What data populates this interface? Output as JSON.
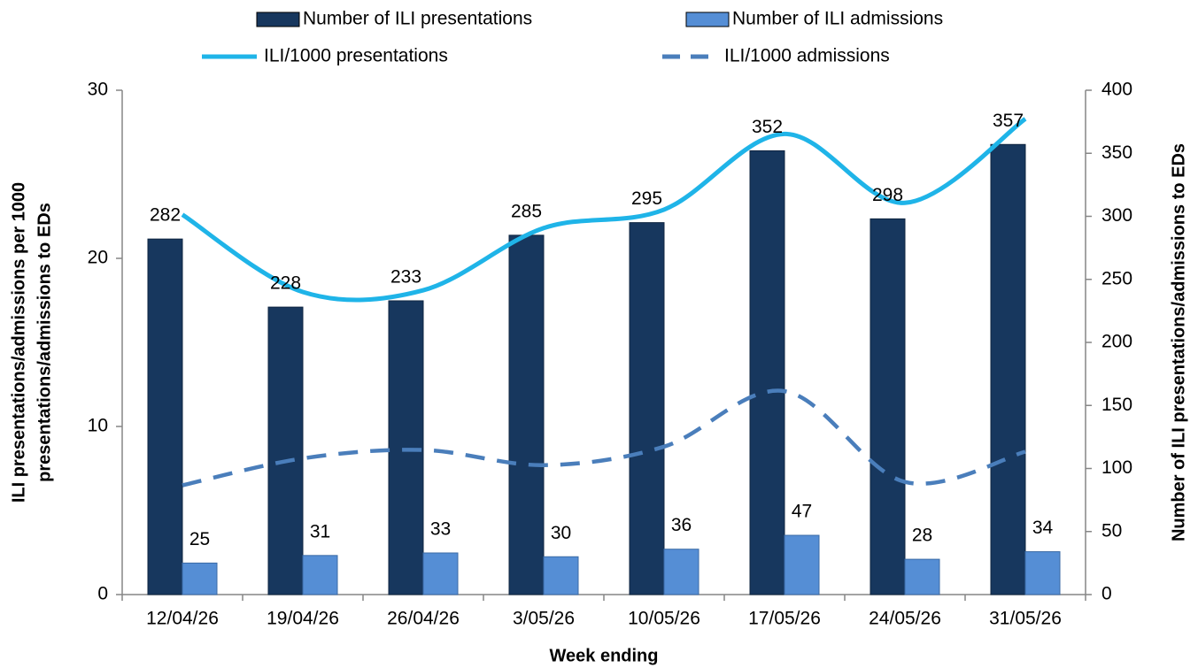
{
  "chart_data": {
    "type": "bar",
    "x_label": "Week ending",
    "y_label": [
      "ILI presentations/admissions  per 1000",
      "presentations/admissions to EDs"
    ],
    "y2_label": "Number of ILI presentations/admissions to EDs",
    "categories": [
      "12/04/26",
      "19/04/26",
      "26/04/26",
      "3/05/26",
      "10/05/26",
      "17/05/26",
      "24/05/26",
      "31/05/26"
    ],
    "series": [
      {
        "name": "Number of ILI presentations",
        "type": "bar",
        "axis": "y2",
        "color": "#17375e",
        "values": [
          282,
          228,
          233,
          285,
          295,
          352,
          298,
          357
        ]
      },
      {
        "name": "Number of ILI admissions",
        "type": "bar",
        "axis": "y2",
        "color": "#558ed5",
        "values": [
          25,
          31,
          33,
          30,
          36,
          47,
          28,
          34
        ]
      },
      {
        "name": "ILI/1000 presentations",
        "type": "line",
        "line_style": "solid",
        "color": "#1fb4e8",
        "values": [
          22.6,
          18.0,
          18.1,
          21.8,
          22.9,
          27.4,
          23.3,
          28.3
        ]
      },
      {
        "name": "ILI/1000 admissions",
        "type": "line",
        "line_style": "dashed",
        "color": "#4a7ebb",
        "values": [
          6.5,
          8.1,
          8.6,
          7.7,
          8.8,
          12.1,
          6.7,
          8.5
        ]
      }
    ],
    "ylim": [
      0,
      30
    ],
    "yticks": [
      0,
      10,
      20,
      30
    ],
    "y2lim": [
      0,
      400
    ],
    "y2ticks": [
      0,
      50,
      100,
      150,
      200,
      250,
      300,
      350,
      400
    ],
    "grid": false,
    "legend": "top",
    "data_labels": true
  }
}
